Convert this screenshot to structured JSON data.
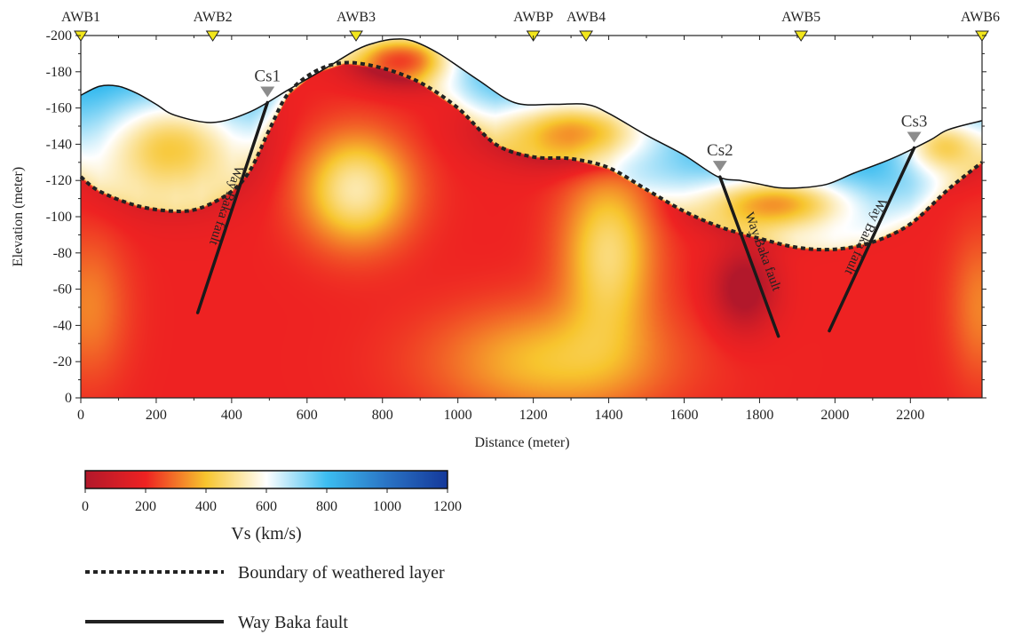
{
  "chart_data": {
    "type": "heatmap",
    "xlabel": "Distance (meter)",
    "ylabel": "Elevation (meter)",
    "xlim": [
      0,
      2390
    ],
    "ylim": [
      0,
      -200
    ],
    "xticks": [
      0,
      200,
      400,
      600,
      800,
      1000,
      1200,
      1400,
      1600,
      1800,
      2000,
      2200
    ],
    "yticks": [
      0,
      -20,
      -40,
      -60,
      -80,
      -100,
      -120,
      -140,
      -160,
      -180,
      -200
    ],
    "colorbar": {
      "title": "Vs (km/s)",
      "ticks": [
        0,
        200,
        400,
        600,
        800,
        1000,
        1200
      ],
      "stops": [
        {
          "value": 0,
          "color": "#b2182b"
        },
        {
          "value": 200,
          "color": "#ee2222"
        },
        {
          "value": 400,
          "color": "#f7c52e"
        },
        {
          "value": 600,
          "color": "#ffffff"
        },
        {
          "value": 800,
          "color": "#3cbdf0"
        },
        {
          "value": 1000,
          "color": "#2a73c4"
        },
        {
          "value": 1200,
          "color": "#14389a"
        }
      ]
    },
    "stations": [
      {
        "name": "AWB1",
        "x": 0
      },
      {
        "name": "AWB2",
        "x": 350
      },
      {
        "name": "AWB3",
        "x": 730
      },
      {
        "name": "AWBP",
        "x": 1200
      },
      {
        "name": "AWB4",
        "x": 1340
      },
      {
        "name": "AWB5",
        "x": 1910
      },
      {
        "name": "AWB6",
        "x": 2390
      }
    ],
    "surface": [
      [
        0,
        -167
      ],
      [
        50,
        -172
      ],
      [
        100,
        -172
      ],
      [
        150,
        -168
      ],
      [
        200,
        -162
      ],
      [
        250,
        -156
      ],
      [
        350,
        -152
      ],
      [
        450,
        -158
      ],
      [
        550,
        -170
      ],
      [
        650,
        -182
      ],
      [
        730,
        -192
      ],
      [
        780,
        -196
      ],
      [
        830,
        -198
      ],
      [
        880,
        -197
      ],
      [
        950,
        -190
      ],
      [
        1050,
        -176
      ],
      [
        1150,
        -163
      ],
      [
        1250,
        -162
      ],
      [
        1340,
        -162
      ],
      [
        1400,
        -157
      ],
      [
        1500,
        -145
      ],
      [
        1600,
        -134
      ],
      [
        1690,
        -122
      ],
      [
        1750,
        -120
      ],
      [
        1800,
        -118
      ],
      [
        1850,
        -116
      ],
      [
        1910,
        -116
      ],
      [
        1980,
        -118
      ],
      [
        2050,
        -124
      ],
      [
        2150,
        -132
      ],
      [
        2250,
        -142
      ],
      [
        2300,
        -148
      ],
      [
        2390,
        -153
      ]
    ],
    "series": [
      {
        "name": "Boundary of weathered layer",
        "points": [
          [
            0,
            -122
          ],
          [
            50,
            -114
          ],
          [
            150,
            -106
          ],
          [
            250,
            -103
          ],
          [
            320,
            -105
          ],
          [
            400,
            -114
          ],
          [
            450,
            -126
          ],
          [
            500,
            -148
          ],
          [
            550,
            -168
          ],
          [
            620,
            -180
          ],
          [
            700,
            -185
          ],
          [
            800,
            -182
          ],
          [
            900,
            -174
          ],
          [
            1000,
            -160
          ],
          [
            1100,
            -140
          ],
          [
            1200,
            -133
          ],
          [
            1300,
            -132
          ],
          [
            1400,
            -127
          ],
          [
            1500,
            -115
          ],
          [
            1600,
            -103
          ],
          [
            1700,
            -94
          ],
          [
            1800,
            -88
          ],
          [
            1900,
            -83
          ],
          [
            2000,
            -82
          ],
          [
            2100,
            -86
          ],
          [
            2200,
            -96
          ],
          [
            2300,
            -115
          ],
          [
            2390,
            -130
          ]
        ]
      },
      {
        "name": "Way Baka fault",
        "lines": [
          {
            "label": "Way Baka fault",
            "from": [
              310,
              -47
            ],
            "to": [
              495,
              -163
            ]
          },
          {
            "label": "Way Baka fault",
            "from": [
              1695,
              -122
            ],
            "to": [
              1850,
              -34
            ]
          },
          {
            "label": "Way Baka fault",
            "from": [
              1985,
              -37
            ],
            "to": [
              2210,
              -138
            ]
          }
        ]
      }
    ],
    "cross_sections": [
      {
        "name": "Cs1",
        "x": 495,
        "y": -163
      },
      {
        "name": "Cs2",
        "x": 1695,
        "y": -122
      },
      {
        "name": "Cs3",
        "x": 2210,
        "y": -138
      }
    ],
    "anomalies": [
      {
        "cx": 240,
        "cy": -140,
        "sx": 190,
        "sy": 28,
        "v": -380
      },
      {
        "cx": 860,
        "cy": -188,
        "sx": 130,
        "sy": 14,
        "v": -420
      },
      {
        "cx": 1320,
        "cy": -148,
        "sx": 210,
        "sy": 18,
        "v": -380
      },
      {
        "cx": 1850,
        "cy": -108,
        "sx": 190,
        "sy": 15,
        "v": -400
      },
      {
        "cx": 2280,
        "cy": -140,
        "sx": 110,
        "sy": 16,
        "v": -330
      },
      {
        "cx": 1760,
        "cy": -60,
        "sx": 80,
        "sy": 22,
        "v": -250
      },
      {
        "cx": 730,
        "cy": -115,
        "sx": 140,
        "sy": 30,
        "v": 320
      },
      {
        "cx": 1400,
        "cy": -80,
        "sx": 120,
        "sy": 45,
        "v": 270
      },
      {
        "cx": 1250,
        "cy": -20,
        "sx": 300,
        "sy": 30,
        "v": 200
      },
      {
        "cx": 20,
        "cy": -50,
        "sx": 100,
        "sy": 40,
        "v": 120
      },
      {
        "cx": 2390,
        "cy": -50,
        "sx": 80,
        "sy": 40,
        "v": 120
      }
    ]
  },
  "legend": {
    "boundary_label": "Boundary of weathered layer",
    "fault_label": "Way Baka fault"
  },
  "colors": {
    "station_fill": "#f2e61c",
    "marker_grey": "#8c8c8c",
    "line": "#222222"
  }
}
